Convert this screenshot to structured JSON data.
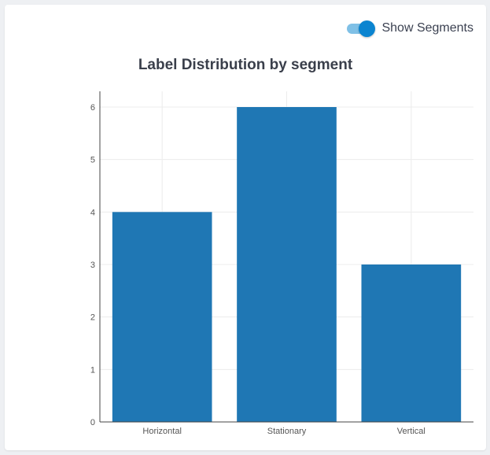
{
  "toggle": {
    "label": "Show Segments",
    "on": true
  },
  "chart_data": {
    "type": "bar",
    "title": "Label Distribution by segment",
    "xlabel": "",
    "ylabel": "",
    "categories": [
      "Horizontal",
      "Stationary",
      "Vertical"
    ],
    "values": [
      4,
      6,
      3
    ],
    "ylim": [
      0,
      6.3
    ],
    "yticks": [
      0,
      1,
      2,
      3,
      4,
      5,
      6
    ],
    "grid": true,
    "bar_color": "#1f77b4"
  }
}
